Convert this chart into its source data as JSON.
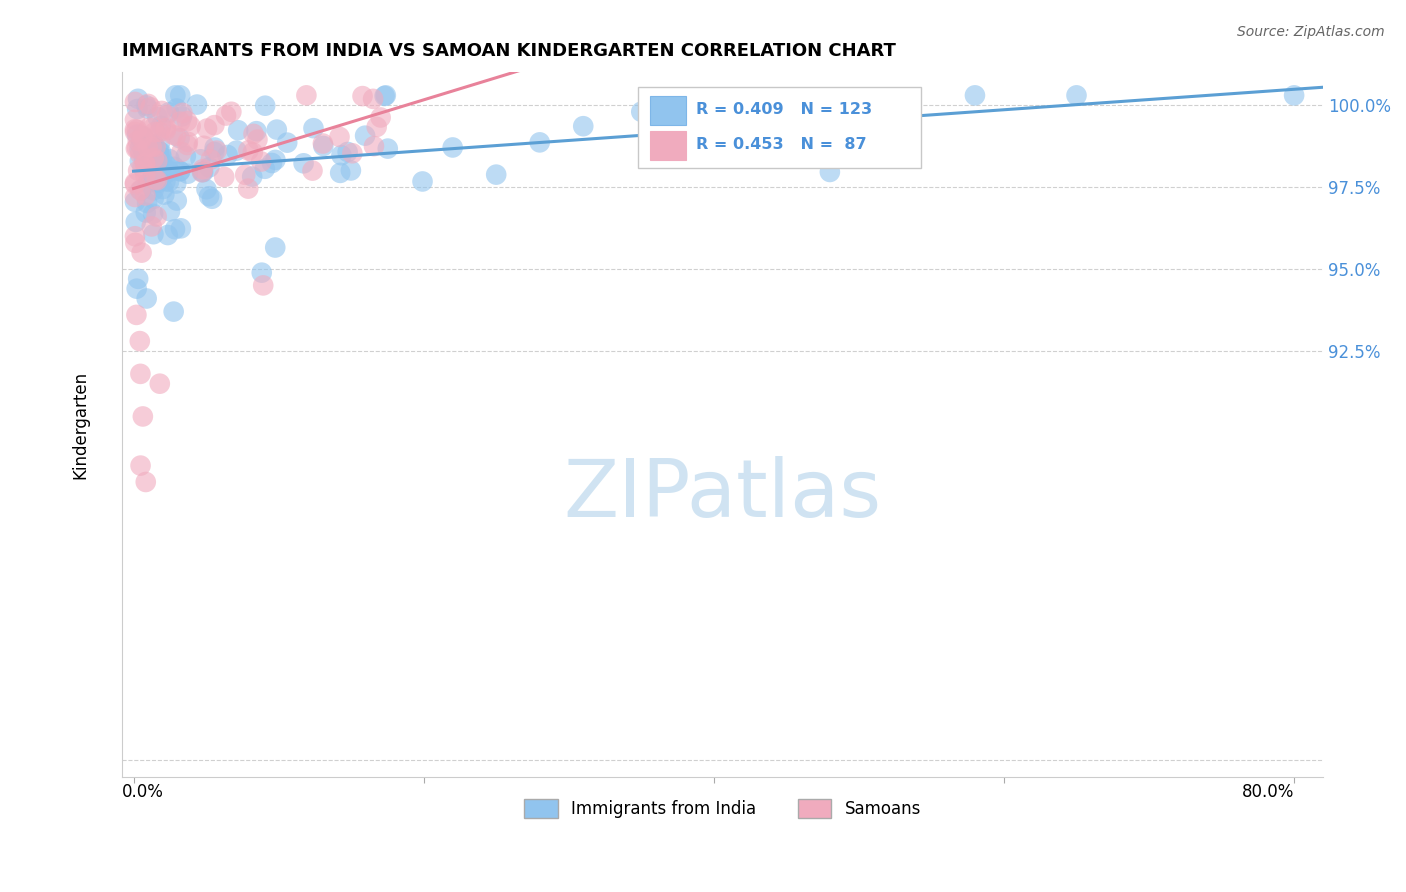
{
  "title": "IMMIGRANTS FROM INDIA VS SAMOAN KINDERGARTEN CORRELATION CHART",
  "source": "Source: ZipAtlas.com",
  "ylabel": "Kindergarten",
  "blue_label": "Immigrants from India",
  "pink_label": "Samoans",
  "blue_color": "#91C4EE",
  "pink_color": "#F0ABBE",
  "trend_blue_color": "#5B9FD4",
  "trend_pink_color": "#E8829A",
  "legend_text_color": "#4A90D9",
  "ytick_color": "#4A90D9",
  "watermark_color": "#C8DFF0",
  "grid_color": "#D0D0D0",
  "ytick_vals": [
    1.0,
    0.975,
    0.95,
    0.925
  ],
  "ytick_labels": [
    "100.0%",
    "97.5%",
    "95.0%",
    "92.5%"
  ],
  "xmin": 0.0,
  "xmax": 0.8,
  "ymin": 0.795,
  "ymax": 1.01,
  "blue_r": "R = 0.409",
  "blue_n": "N = 123",
  "pink_r": "R = 0.453",
  "pink_n": "N =  87"
}
